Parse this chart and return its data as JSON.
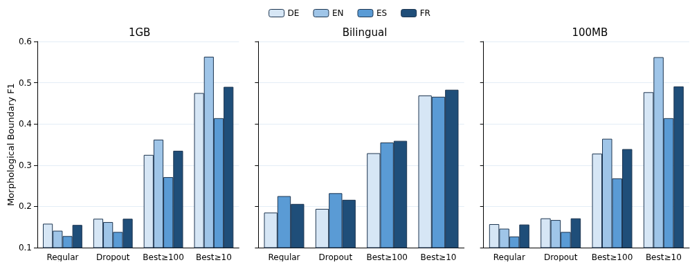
{
  "chart_data": [
    {
      "type": "bar",
      "title": "1GB",
      "ylabel": "Morphological Boundary F1",
      "categories": [
        "Regular",
        "Dropout",
        "Best≥100",
        "Best≥10"
      ],
      "ylim": [
        0.1,
        0.6
      ],
      "yticks": [
        0.1,
        0.2,
        0.3,
        0.4,
        0.5,
        0.6
      ],
      "grid": "y",
      "legend": "top",
      "series": [
        {
          "name": "DE",
          "color": "#d6e6f5",
          "values": [
            0.158,
            0.17,
            0.325,
            0.475
          ]
        },
        {
          "name": "EN",
          "color": "#9fc5e8",
          "values": [
            0.141,
            0.162,
            0.362,
            0.563
          ]
        },
        {
          "name": "ES",
          "color": "#5a9bd5",
          "values": [
            0.128,
            0.138,
            0.271,
            0.414
          ]
        },
        {
          "name": "FR",
          "color": "#1f4e79",
          "values": [
            0.155,
            0.17,
            0.335,
            0.49
          ]
        }
      ]
    },
    {
      "type": "bar",
      "title": "Bilingual",
      "categories": [
        "Regular",
        "Dropout",
        "Best≥100",
        "Best≥10"
      ],
      "ylim": [
        0.1,
        0.6
      ],
      "yticks": [
        0.1,
        0.2,
        0.3,
        0.4,
        0.5,
        0.6
      ],
      "grid": "y",
      "tick_labels": "x",
      "series": [
        {
          "name": "DE",
          "color": "#d6e6f5",
          "values": [
            0.185,
            0.194,
            0.329,
            0.469
          ]
        },
        {
          "name": "ES",
          "color": "#5a9bd5",
          "values": [
            0.225,
            0.232,
            0.355,
            0.466
          ]
        },
        {
          "name": "FR",
          "color": "#1f4e79",
          "values": [
            0.206,
            0.216,
            0.359,
            0.483
          ]
        }
      ]
    },
    {
      "type": "bar",
      "title": "100MB",
      "categories": [
        "Regular",
        "Dropout",
        "Best≥100",
        "Best≥10"
      ],
      "ylim": [
        0.1,
        0.6
      ],
      "yticks": [
        0.1,
        0.2,
        0.3,
        0.4,
        0.5,
        0.6
      ],
      "grid": "y",
      "tick_labels": "x",
      "series": [
        {
          "name": "DE",
          "color": "#d6e6f5",
          "values": [
            0.157,
            0.171,
            0.328,
            0.477
          ]
        },
        {
          "name": "EN",
          "color": "#9fc5e8",
          "values": [
            0.146,
            0.167,
            0.364,
            0.562
          ]
        },
        {
          "name": "ES",
          "color": "#5a9bd5",
          "values": [
            0.127,
            0.138,
            0.268,
            0.414
          ]
        },
        {
          "name": "FR",
          "color": "#1f4e79",
          "values": [
            0.156,
            0.171,
            0.339,
            0.491
          ]
        }
      ]
    }
  ]
}
